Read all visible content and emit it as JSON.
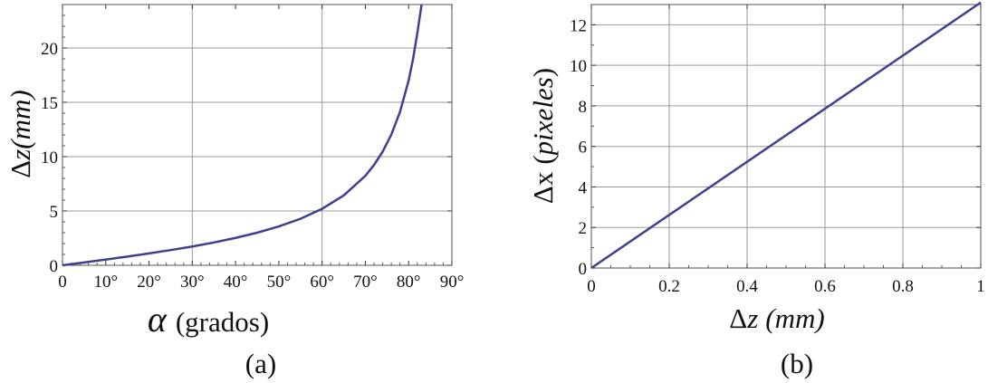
{
  "chart_data": [
    {
      "type": "line",
      "panel_label": "(a)",
      "xlabel_symbol": "α",
      "xlabel_text": "(grados)",
      "ylabel_symbol": "Δ",
      "ylabel_var": "z",
      "ylabel_unit": "(mm)",
      "xlim": [
        0,
        90
      ],
      "ylim": [
        0,
        24
      ],
      "xticks": [
        0,
        10,
        20,
        30,
        40,
        50,
        60,
        70,
        80,
        90
      ],
      "xtick_labels": [
        "0",
        "10°",
        "20°",
        "30°",
        "40°",
        "50°",
        "60°",
        "70°",
        "80°",
        "90°"
      ],
      "yticks": [
        0,
        5,
        10,
        15,
        20
      ],
      "ytick_labels": [
        "0",
        "5",
        "10",
        "15",
        "20"
      ],
      "grid_x": [
        30,
        60
      ],
      "grid_y": [
        5,
        10,
        15,
        20
      ],
      "series": [
        {
          "color": "#3f3f8f",
          "x": [
            0,
            5,
            10,
            15,
            20,
            25,
            30,
            35,
            40,
            45,
            50,
            55,
            60,
            65,
            70,
            72,
            74,
            76,
            78,
            80,
            81,
            82,
            83
          ],
          "y": [
            0.0,
            0.26,
            0.53,
            0.8,
            1.09,
            1.4,
            1.73,
            2.1,
            2.52,
            3.0,
            3.58,
            4.28,
            5.2,
            6.43,
            8.24,
            9.23,
            10.46,
            12.03,
            14.11,
            17.0,
            18.94,
            21.34,
            24.0
          ]
        }
      ]
    },
    {
      "type": "line",
      "panel_label": "(b)",
      "xlabel_symbol": "Δ",
      "xlabel_var": "z",
      "xlabel_unit": "(mm)",
      "ylabel_symbol": "Δ",
      "ylabel_var": "x",
      "ylabel_unit": "pixeles",
      "xlim": [
        0,
        1
      ],
      "ylim": [
        0,
        13
      ],
      "xticks": [
        0,
        0.2,
        0.4,
        0.6,
        0.8,
        1
      ],
      "xtick_labels": [
        "0",
        "0.2",
        "0.4",
        "0.6",
        "0.8",
        "1"
      ],
      "yticks": [
        0,
        2,
        4,
        6,
        8,
        10,
        12
      ],
      "ytick_labels": [
        "0",
        "2",
        "4",
        "6",
        "8",
        "10",
        "12"
      ],
      "grid_x": [
        0.2,
        0.4,
        0.6,
        0.8
      ],
      "grid_y": [
        2,
        4,
        6,
        8,
        10,
        12
      ],
      "series": [
        {
          "color": "#3f3f8f",
          "x": [
            0,
            1
          ],
          "y": [
            0,
            13.1
          ]
        }
      ]
    }
  ]
}
